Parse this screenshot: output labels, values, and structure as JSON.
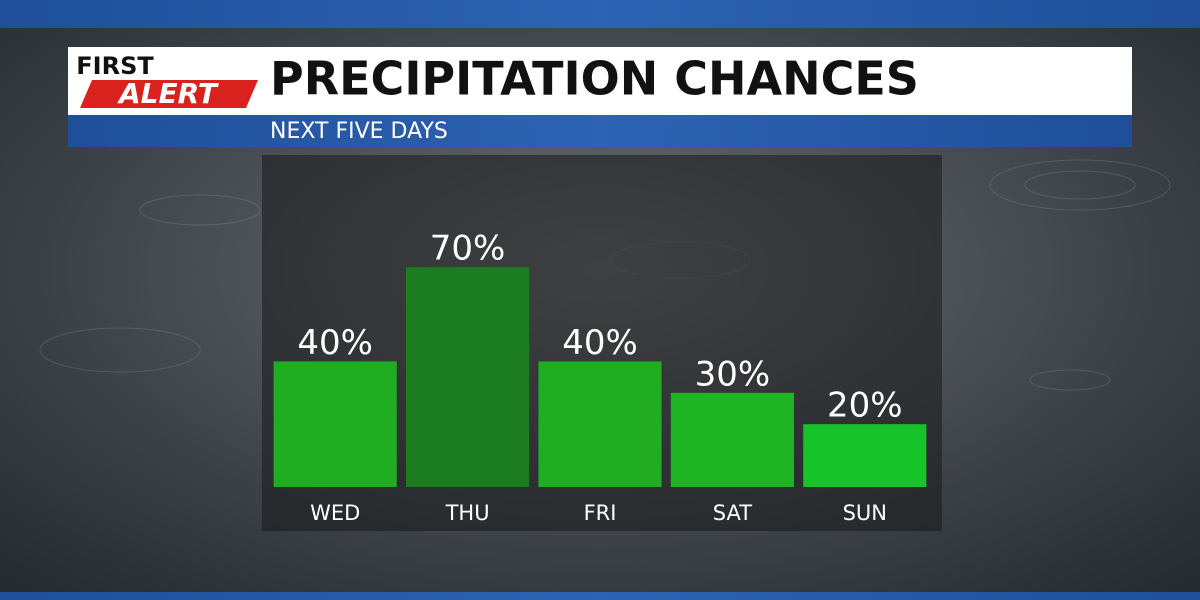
{
  "logo": {
    "top": "FIRST",
    "bottom": "ALERT"
  },
  "chart_data": {
    "type": "bar",
    "title": "PRECIPITATION CHANCES",
    "subtitle": "NEXT FIVE DAYS",
    "categories": [
      "WED",
      "THU",
      "FRI",
      "SAT",
      "SUN"
    ],
    "values": [
      40,
      70,
      40,
      30,
      20
    ],
    "value_labels": [
      "40%",
      "70%",
      "40%",
      "30%",
      "20%"
    ],
    "colors": [
      "#20ad22",
      "#1b7c20",
      "#20ad22",
      "#1fb423",
      "#16c42a"
    ],
    "ylim": [
      0,
      100
    ]
  }
}
